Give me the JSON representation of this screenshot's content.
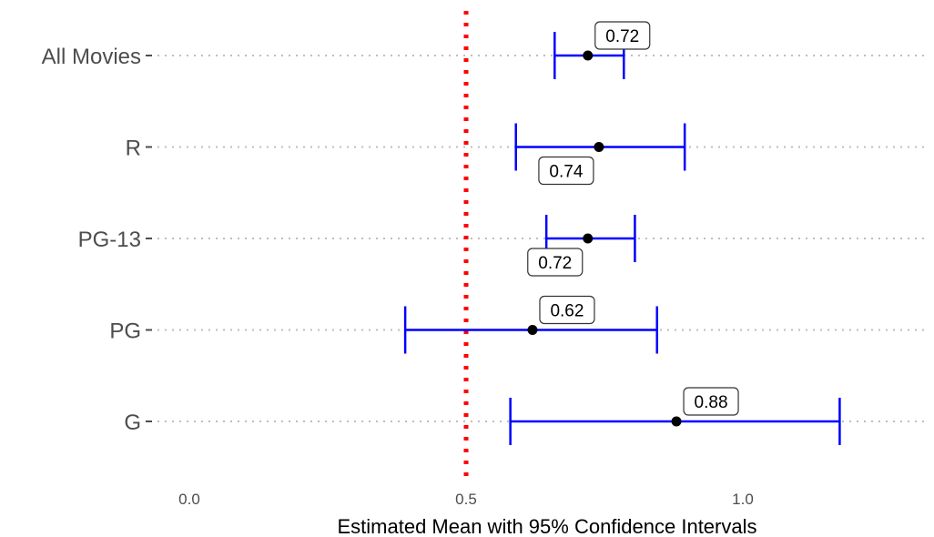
{
  "chart_data": {
    "type": "scatter",
    "subtype": "point-with-error-bars",
    "orientation": "horizontal",
    "title": "",
    "xlabel": "Estimated Mean with 95% Confidence Intervals",
    "ylabel": "",
    "xlim": [
      0.0,
      1.35
    ],
    "x_ticks": [
      "0.0",
      "0.5",
      "1.0"
    ],
    "categories": [
      "All Movies",
      "R",
      "PG-13",
      "PG",
      "G"
    ],
    "estimates": [
      0.72,
      0.74,
      0.72,
      0.62,
      0.88
    ],
    "ci_lower": [
      0.66,
      0.59,
      0.645,
      0.39,
      0.58
    ],
    "ci_upper": [
      0.785,
      0.895,
      0.805,
      0.845,
      1.175
    ],
    "data_labels": [
      "0.72",
      "0.74",
      "0.72",
      "0.62",
      "0.88"
    ],
    "data_label_position": [
      "above",
      "below",
      "below",
      "above",
      "above"
    ],
    "reference_line": {
      "x": 0.5,
      "color": "#ff0000",
      "style": "dotted"
    },
    "errorbar_color": "#0000ff",
    "point_color": "#000000",
    "grid": "horizontal-dotted",
    "legend": "none"
  }
}
